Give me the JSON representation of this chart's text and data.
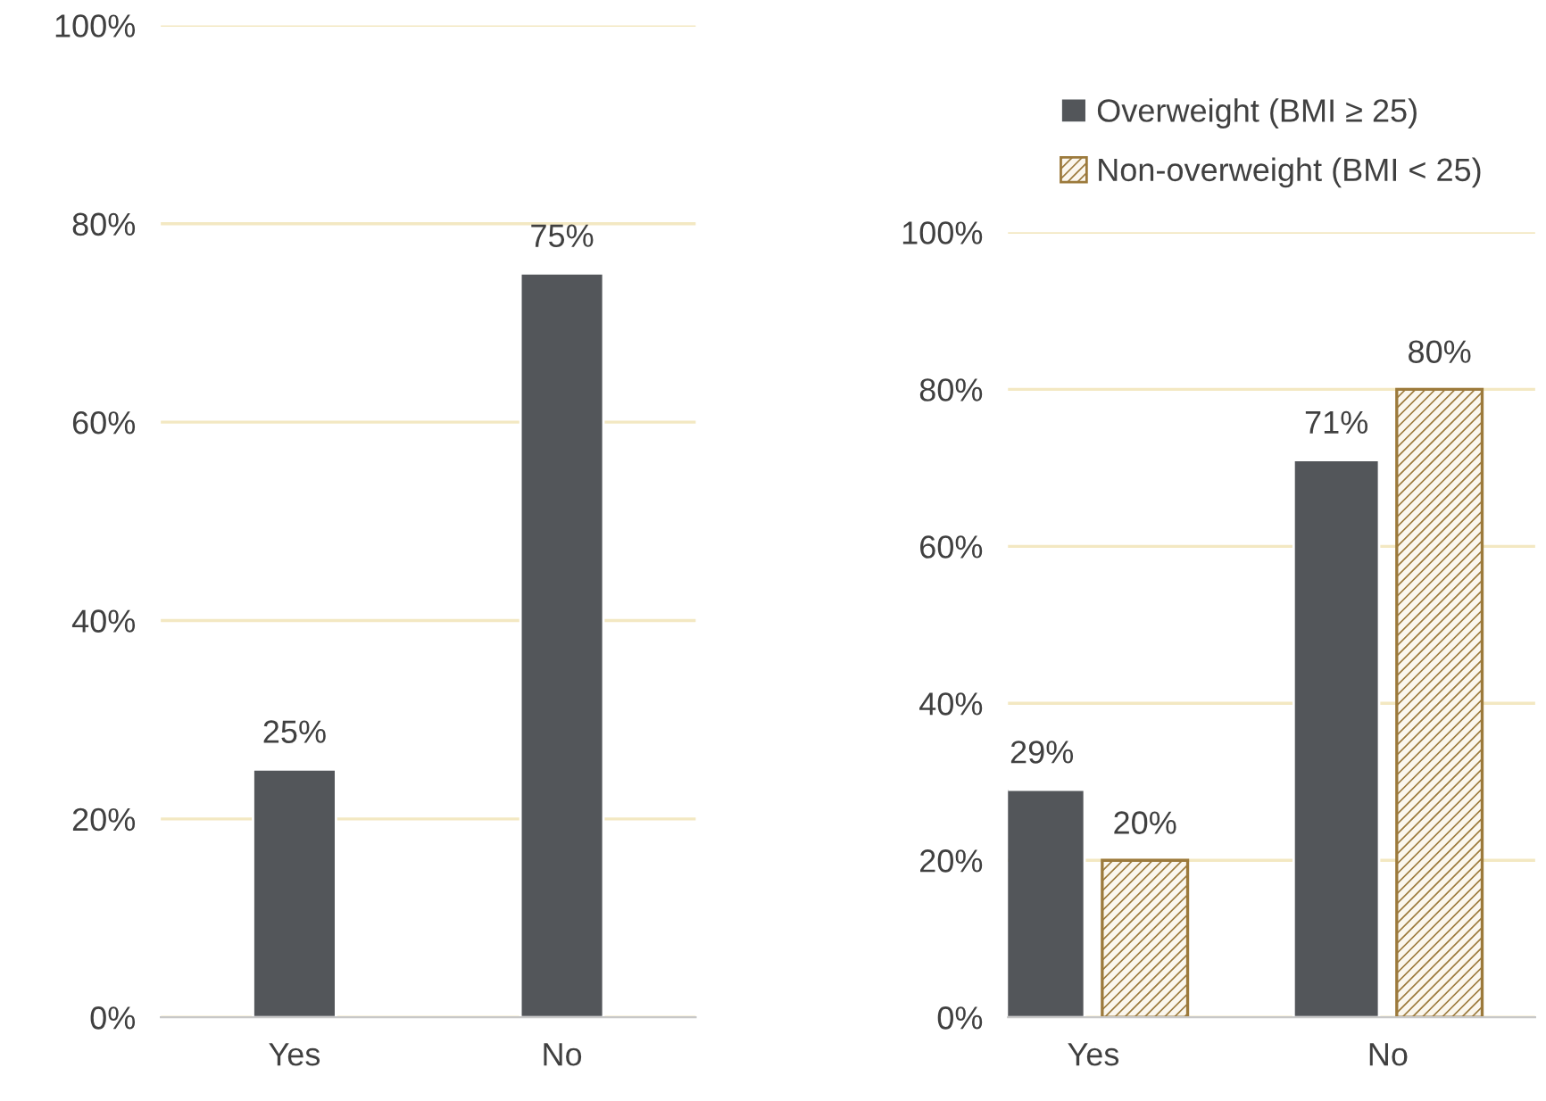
{
  "chart_data": [
    {
      "type": "bar",
      "categories": [
        "Yes",
        "No"
      ],
      "ylim": [
        0,
        100
      ],
      "yticks": [
        {
          "value": 0,
          "label": "0%"
        },
        {
          "value": 20,
          "label": "20%"
        },
        {
          "value": 40,
          "label": "40%"
        },
        {
          "value": 60,
          "label": "60%"
        },
        {
          "value": 80,
          "label": "80%"
        },
        {
          "value": 100,
          "label": "100%"
        }
      ],
      "grid": "y",
      "legend": false,
      "series": [
        {
          "color": "#53565a",
          "values": [
            25,
            75
          ],
          "value_labels": [
            "25%",
            "75%"
          ]
        }
      ]
    },
    {
      "type": "bar",
      "categories": [
        "Yes",
        "No"
      ],
      "ylim": [
        0,
        100
      ],
      "yticks": [
        {
          "value": 0,
          "label": "0%"
        },
        {
          "value": 20,
          "label": "20%"
        },
        {
          "value": 40,
          "label": "40%"
        },
        {
          "value": 60,
          "label": "60%"
        },
        {
          "value": 80,
          "label": "80%"
        },
        {
          "value": 100,
          "label": "100%"
        }
      ],
      "grid": "y",
      "legend": "top",
      "series": [
        {
          "name": "Overweight (BMI ≥ 25)",
          "color": "#53565a",
          "values": [
            29,
            71
          ],
          "value_labels": [
            "29%",
            "71%"
          ]
        },
        {
          "name": "Non-overweight (BMI < 25)",
          "color": "#9c7a3c",
          "values": [
            20,
            80
          ],
          "value_labels": [
            "20%",
            "80%"
          ]
        }
      ]
    }
  ]
}
